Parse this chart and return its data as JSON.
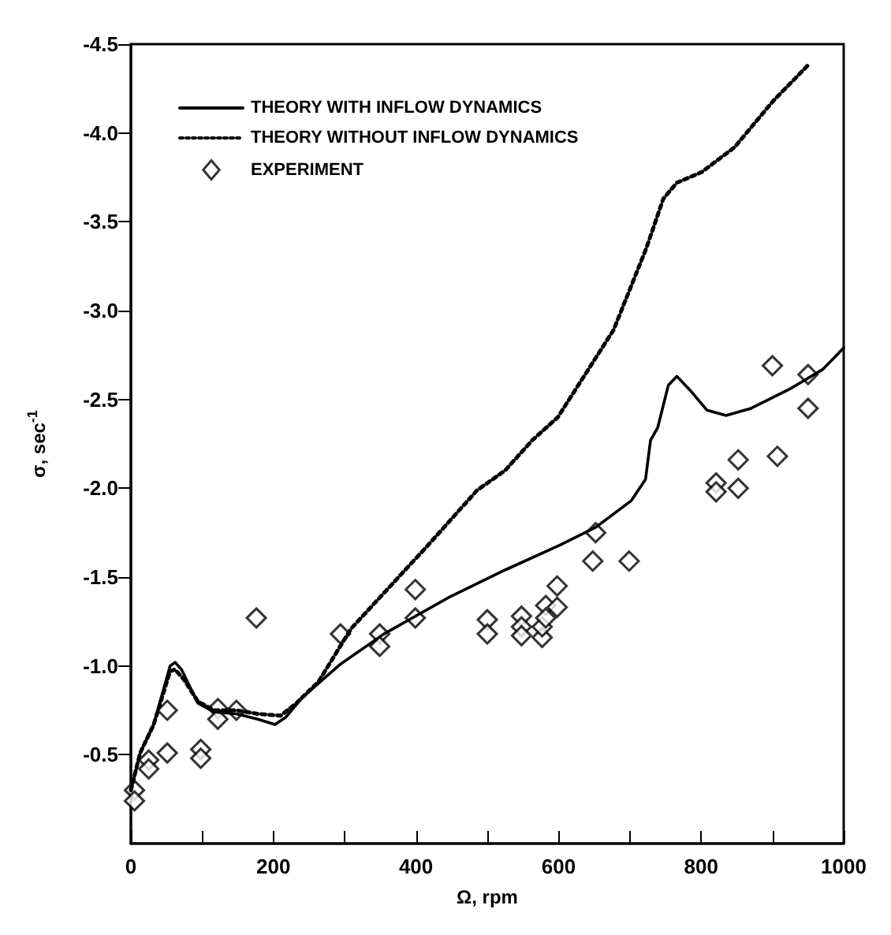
{
  "chart_data": {
    "type": "line",
    "xlabel": "Ω, rpm",
    "ylabel": "σ, sec$^{-1}$",
    "xlim": [
      0,
      1000
    ],
    "ylim": [
      0,
      -4.5
    ],
    "xticks": [
      0,
      {
        "value": 100,
        "label": null
      },
      200,
      {
        "value": 300,
        "label": null
      },
      400,
      {
        "value": 500,
        "label": null
      },
      600,
      {
        "value": 700,
        "label": null
      },
      800,
      {
        "value": 900,
        "label": null
      },
      1000
    ],
    "yticks": [
      -4.5,
      {
        "value": -4,
        "label": "-4.0"
      },
      -3.5,
      {
        "value": -3,
        "label": "-3.0"
      },
      -2.5,
      {
        "value": -2,
        "label": "-2.0"
      },
      -1.5,
      {
        "value": -1,
        "label": "-1.0"
      },
      -0.5
    ],
    "grid": false,
    "legend": "top left",
    "series": [
      {
        "name": "THEORY WITH INFLOW DYNAMICS",
        "type": "line",
        "line_style": "solid",
        "marker": "none",
        "color": "#000000",
        "x": [
          0,
          13,
          32,
          55,
          62,
          71,
          94,
          117,
          148,
          178,
          202,
          217,
          240,
          294,
          355,
          448,
          525,
          602,
          652,
          702,
          722,
          729,
          739,
          754,
          766,
          785,
          808,
          835,
          870,
          925,
          971,
          1000
        ],
        "values": [
          -0.3,
          -0.51,
          -0.67,
          -1.0,
          -1.02,
          -0.98,
          -0.79,
          -0.74,
          -0.73,
          -0.7,
          -0.67,
          -0.71,
          -0.82,
          -1.01,
          -1.18,
          -1.39,
          -1.54,
          -1.68,
          -1.78,
          -1.93,
          -2.05,
          -2.27,
          -2.34,
          -2.58,
          -2.63,
          -2.55,
          -2.44,
          -2.41,
          -2.45,
          -2.56,
          -2.67,
          -2.79
        ]
      },
      {
        "name": "THEORY WITHOUT INFLOW DYNAMICS",
        "type": "line",
        "line_style": "dotted",
        "marker": "none",
        "color": "#000000",
        "x": [
          0,
          13,
          32,
          55,
          62,
          75,
          94,
          117,
          148,
          178,
          210,
          232,
          263,
          309,
          371,
          417,
          486,
          525,
          563,
          599,
          677,
          723,
          747,
          766,
          801,
          847,
          901,
          952
        ],
        "values": [
          -0.3,
          -0.51,
          -0.67,
          -0.97,
          -0.98,
          -0.92,
          -0.8,
          -0.75,
          -0.75,
          -0.73,
          -0.72,
          -0.79,
          -0.91,
          -1.21,
          -1.48,
          -1.68,
          -1.99,
          -2.1,
          -2.27,
          -2.4,
          -2.89,
          -3.35,
          -3.63,
          -3.72,
          -3.78,
          -3.92,
          -4.18,
          -4.39
        ]
      },
      {
        "name": "EXPERIMENT",
        "type": "scatter",
        "marker": "diamond",
        "color": "#000000",
        "x": [
          5,
          5,
          25,
          25,
          51,
          51,
          98,
          98,
          122,
          122,
          148,
          176,
          294,
          349,
          349,
          399,
          399,
          500,
          500,
          548,
          548,
          548,
          577,
          577,
          582,
          582,
          598,
          598,
          652,
          648,
          699,
          821,
          821,
          852,
          852,
          907,
          900,
          950,
          950
        ],
        "values": [
          -0.3,
          -0.24,
          -0.47,
          -0.42,
          -0.75,
          -0.51,
          -0.53,
          -0.48,
          -0.76,
          -0.7,
          -0.75,
          -1.27,
          -1.18,
          -1.18,
          -1.11,
          -1.43,
          -1.27,
          -1.26,
          -1.18,
          -1.28,
          -1.22,
          -1.17,
          -1.16,
          -1.22,
          -1.34,
          -1.27,
          -1.45,
          -1.33,
          -1.75,
          -1.59,
          -1.59,
          -2.03,
          -1.98,
          -2.16,
          -2.0,
          -2.18,
          -2.69,
          -2.64,
          -2.45
        ]
      }
    ]
  }
}
